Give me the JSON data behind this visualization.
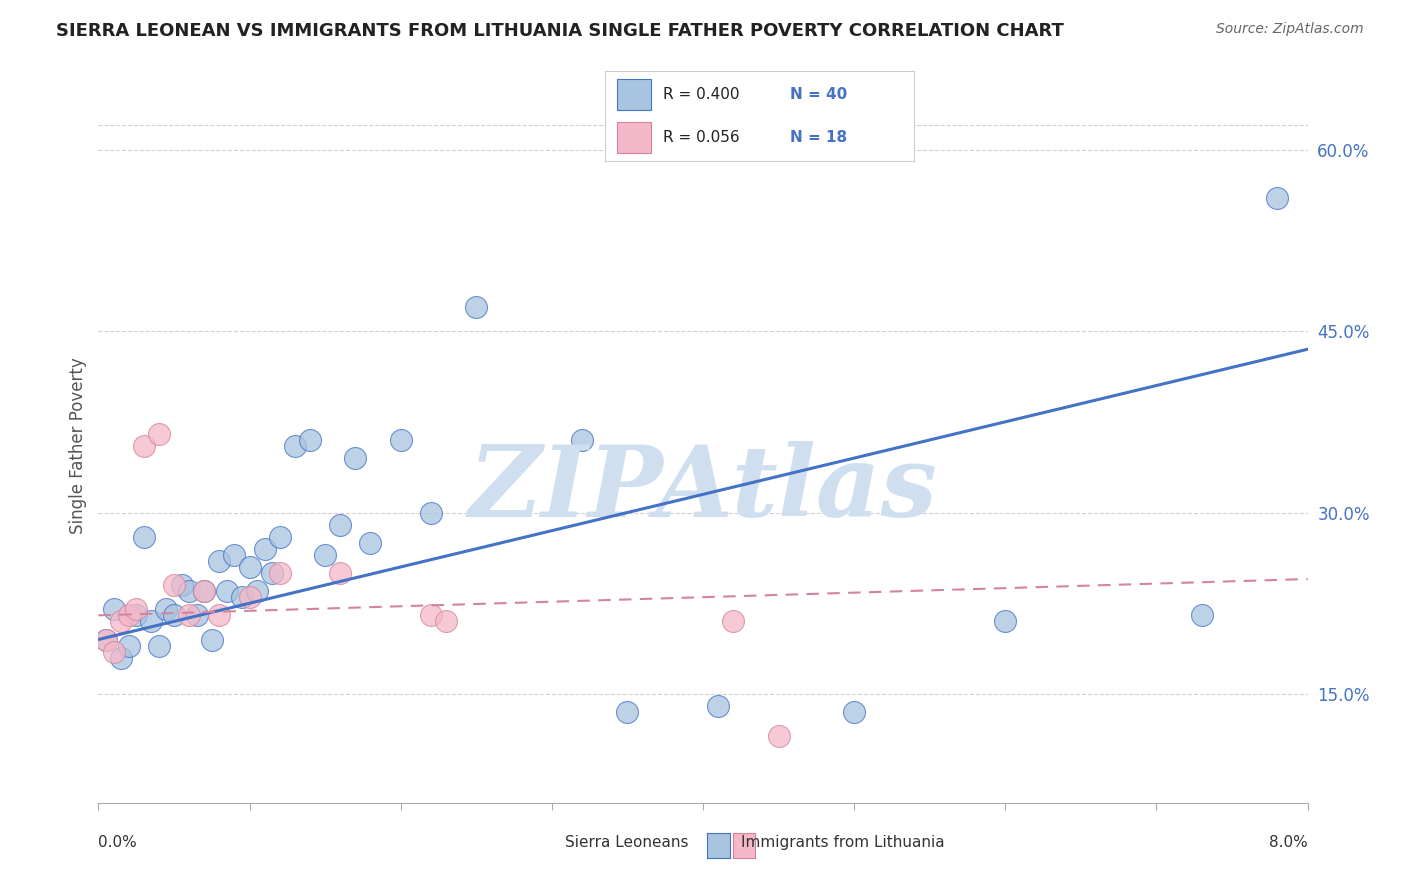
{
  "title": "SIERRA LEONEAN VS IMMIGRANTS FROM LITHUANIA SINGLE FATHER POVERTY CORRELATION CHART",
  "source": "Source: ZipAtlas.com",
  "ylabel": "Single Father Poverty",
  "r_blue": 0.4,
  "n_blue": 40,
  "r_pink": 0.056,
  "n_pink": 18,
  "right_yticks": [
    0.15,
    0.3,
    0.45,
    0.6
  ],
  "right_yticklabels": [
    "15.0%",
    "30.0%",
    "45.0%",
    "60.0%"
  ],
  "blue_color": "#a8c4e0",
  "blue_line_color": "#4472c4",
  "pink_color": "#f4b8c8",
  "pink_line_color": "#d4849a",
  "watermark": "ZIPAtlas",
  "watermark_color": "#d0dff0",
  "blue_scatter_x": [
    0.05,
    0.1,
    0.15,
    0.2,
    0.25,
    0.3,
    0.35,
    0.4,
    0.45,
    0.5,
    0.55,
    0.6,
    0.65,
    0.7,
    0.75,
    0.8,
    0.85,
    0.9,
    0.95,
    1.0,
    1.05,
    1.1,
    1.15,
    1.2,
    1.3,
    1.4,
    1.5,
    1.6,
    1.7,
    1.8,
    2.0,
    2.2,
    2.5,
    3.2,
    3.5,
    4.1,
    5.0,
    6.0,
    7.3,
    7.8
  ],
  "blue_scatter_y": [
    0.195,
    0.22,
    0.18,
    0.19,
    0.215,
    0.28,
    0.21,
    0.19,
    0.22,
    0.215,
    0.24,
    0.235,
    0.215,
    0.235,
    0.195,
    0.26,
    0.235,
    0.265,
    0.23,
    0.255,
    0.235,
    0.27,
    0.25,
    0.28,
    0.355,
    0.36,
    0.265,
    0.29,
    0.345,
    0.275,
    0.36,
    0.3,
    0.47,
    0.36,
    0.135,
    0.14,
    0.135,
    0.21,
    0.215,
    0.56
  ],
  "pink_scatter_x": [
    0.05,
    0.1,
    0.15,
    0.2,
    0.25,
    0.3,
    0.4,
    0.5,
    0.6,
    0.7,
    0.8,
    1.0,
    1.2,
    1.6,
    2.2,
    2.3,
    4.2,
    4.5
  ],
  "pink_scatter_y": [
    0.195,
    0.185,
    0.21,
    0.215,
    0.22,
    0.355,
    0.365,
    0.24,
    0.215,
    0.235,
    0.215,
    0.23,
    0.25,
    0.25,
    0.215,
    0.21,
    0.21,
    0.115
  ],
  "blue_line_x0": 0.0,
  "blue_line_x1": 8.0,
  "blue_line_y0": 0.195,
  "blue_line_y1": 0.435,
  "pink_line_x0": 0.0,
  "pink_line_x1": 8.0,
  "pink_line_y0": 0.215,
  "pink_line_y1": 0.245,
  "xmin": 0.0,
  "xmax": 8.0,
  "ymin": 0.06,
  "ymax": 0.65
}
